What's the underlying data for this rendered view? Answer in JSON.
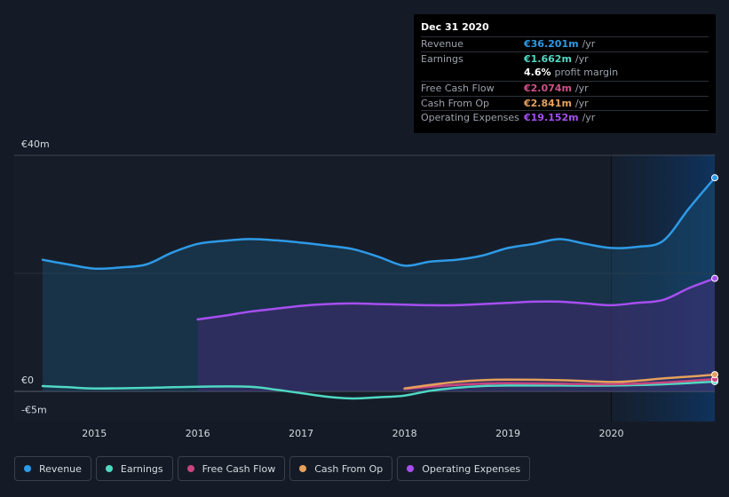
{
  "tooltip": {
    "date": "Dec 31 2020",
    "rows": [
      {
        "label": "Revenue",
        "value": "€36.201m",
        "unit": "/yr",
        "color": "#2e9ae6"
      },
      {
        "label": "Earnings",
        "value": "€1.662m",
        "unit": "/yr",
        "color": "#4fd8c3"
      },
      {
        "label": "",
        "value": "4.6%",
        "unit": "profit margin",
        "color": "#ffffff"
      },
      {
        "label": "Free Cash Flow",
        "value": "€2.074m",
        "unit": "/yr",
        "color": "#d0508a"
      },
      {
        "label": "Cash From Op",
        "value": "€2.841m",
        "unit": "/yr",
        "color": "#e6a05c"
      },
      {
        "label": "Operating Expenses",
        "value": "€19.152m",
        "unit": "/yr",
        "color": "#a64ff0"
      }
    ]
  },
  "legend": [
    {
      "label": "Revenue",
      "color": "#2e9ae6"
    },
    {
      "label": "Earnings",
      "color": "#4fd8c3"
    },
    {
      "label": "Free Cash Flow",
      "color": "#c8467f"
    },
    {
      "label": "Cash From Op",
      "color": "#e6a05c"
    },
    {
      "label": "Operating Expenses",
      "color": "#a64ff0"
    }
  ],
  "chart_data": {
    "type": "area",
    "y_tick_labels": [
      "€40m",
      "€0",
      "-€5m"
    ],
    "ylim": [
      -5,
      40
    ],
    "x_tick_labels": [
      "2015",
      "2016",
      "2017",
      "2018",
      "2019",
      "2020"
    ],
    "xlim": [
      2014.5,
      2021.0
    ],
    "highlight_start": 2020.0,
    "series": [
      {
        "name": "Revenue",
        "color": "#2e9ae6",
        "points": [
          [
            2014.5,
            22.3
          ],
          [
            2014.75,
            21.5
          ],
          [
            2015.0,
            20.8
          ],
          [
            2015.25,
            21.0
          ],
          [
            2015.5,
            21.5
          ],
          [
            2015.75,
            23.5
          ],
          [
            2016.0,
            25.0
          ],
          [
            2016.25,
            25.5
          ],
          [
            2016.5,
            25.8
          ],
          [
            2016.75,
            25.6
          ],
          [
            2017.0,
            25.2
          ],
          [
            2017.25,
            24.7
          ],
          [
            2017.5,
            24.1
          ],
          [
            2017.75,
            22.8
          ],
          [
            2018.0,
            21.3
          ],
          [
            2018.25,
            22.0
          ],
          [
            2018.5,
            22.3
          ],
          [
            2018.75,
            23.0
          ],
          [
            2019.0,
            24.3
          ],
          [
            2019.25,
            25.0
          ],
          [
            2019.5,
            25.8
          ],
          [
            2019.75,
            25.0
          ],
          [
            2020.0,
            24.3
          ],
          [
            2020.25,
            24.5
          ],
          [
            2020.5,
            25.5
          ],
          [
            2020.75,
            31.0
          ],
          [
            2021.0,
            36.2
          ]
        ]
      },
      {
        "name": "Operating Expenses",
        "color": "#a64ff0",
        "points": [
          [
            2016.0,
            12.2
          ],
          [
            2016.25,
            12.8
          ],
          [
            2016.5,
            13.5
          ],
          [
            2016.75,
            14.0
          ],
          [
            2017.0,
            14.5
          ],
          [
            2017.25,
            14.8
          ],
          [
            2017.5,
            14.9
          ],
          [
            2017.75,
            14.8
          ],
          [
            2018.0,
            14.7
          ],
          [
            2018.25,
            14.6
          ],
          [
            2018.5,
            14.6
          ],
          [
            2018.75,
            14.8
          ],
          [
            2019.0,
            15.0
          ],
          [
            2019.25,
            15.2
          ],
          [
            2019.5,
            15.2
          ],
          [
            2019.75,
            14.9
          ],
          [
            2020.0,
            14.6
          ],
          [
            2020.25,
            15.0
          ],
          [
            2020.5,
            15.5
          ],
          [
            2020.75,
            17.5
          ],
          [
            2021.0,
            19.15
          ]
        ]
      },
      {
        "name": "Earnings",
        "color": "#4fd8c3",
        "points": [
          [
            2014.5,
            0.9
          ],
          [
            2014.75,
            0.7
          ],
          [
            2015.0,
            0.5
          ],
          [
            2015.5,
            0.6
          ],
          [
            2016.0,
            0.8
          ],
          [
            2016.5,
            0.8
          ],
          [
            2016.75,
            0.3
          ],
          [
            2017.0,
            -0.3
          ],
          [
            2017.25,
            -0.9
          ],
          [
            2017.5,
            -1.2
          ],
          [
            2017.75,
            -1.0
          ],
          [
            2018.0,
            -0.7
          ],
          [
            2018.25,
            0.1
          ],
          [
            2018.5,
            0.6
          ],
          [
            2018.75,
            0.9
          ],
          [
            2019.0,
            1.0
          ],
          [
            2019.5,
            1.0
          ],
          [
            2020.0,
            1.0
          ],
          [
            2020.5,
            1.2
          ],
          [
            2021.0,
            1.66
          ]
        ]
      },
      {
        "name": "Free Cash Flow",
        "color": "#c8467f",
        "points": [
          [
            2018.0,
            0.4
          ],
          [
            2018.25,
            0.8
          ],
          [
            2018.5,
            1.1
          ],
          [
            2018.75,
            1.3
          ],
          [
            2019.0,
            1.4
          ],
          [
            2019.5,
            1.3
          ],
          [
            2020.0,
            1.2
          ],
          [
            2020.5,
            1.5
          ],
          [
            2021.0,
            2.07
          ]
        ]
      },
      {
        "name": "Cash From Op",
        "color": "#e6a05c",
        "points": [
          [
            2018.0,
            0.5
          ],
          [
            2018.25,
            1.1
          ],
          [
            2018.5,
            1.6
          ],
          [
            2018.75,
            1.9
          ],
          [
            2019.0,
            2.0
          ],
          [
            2019.5,
            1.9
          ],
          [
            2020.0,
            1.6
          ],
          [
            2020.25,
            1.8
          ],
          [
            2020.5,
            2.2
          ],
          [
            2020.75,
            2.5
          ],
          [
            2021.0,
            2.84
          ]
        ]
      }
    ]
  }
}
